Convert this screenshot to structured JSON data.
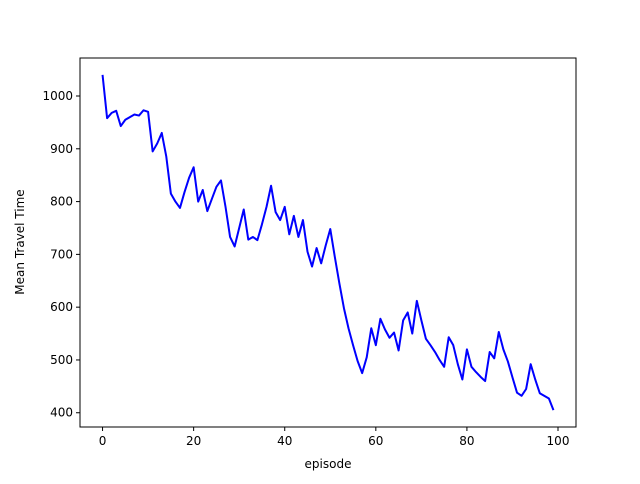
{
  "chart_data": {
    "type": "line",
    "xlabel": "episode",
    "ylabel": "Mean Travel Time",
    "x": [
      0,
      1,
      2,
      3,
      4,
      5,
      6,
      7,
      8,
      9,
      10,
      11,
      12,
      13,
      14,
      15,
      16,
      17,
      18,
      19,
      20,
      21,
      22,
      23,
      24,
      25,
      26,
      27,
      28,
      29,
      30,
      31,
      32,
      33,
      34,
      35,
      36,
      37,
      38,
      39,
      40,
      41,
      42,
      43,
      44,
      45,
      46,
      47,
      48,
      49,
      50,
      51,
      52,
      53,
      54,
      55,
      56,
      57,
      58,
      59,
      60,
      61,
      62,
      63,
      64,
      65,
      66,
      67,
      68,
      69,
      70,
      71,
      72,
      73,
      74,
      75,
      76,
      77,
      78,
      79,
      80,
      81,
      82,
      83,
      84,
      85,
      86,
      87,
      88,
      89,
      90,
      91,
      92,
      93,
      94,
      95,
      96,
      97,
      98,
      99
    ],
    "series": [
      {
        "color": "#0000ff",
        "values": [
          1040,
          958,
          968,
          972,
          943,
          955,
          960,
          965,
          963,
          973,
          970,
          895,
          910,
          930,
          885,
          815,
          800,
          788,
          818,
          845,
          865,
          800,
          822,
          782,
          805,
          828,
          840,
          790,
          733,
          715,
          750,
          785,
          728,
          733,
          727,
          757,
          790,
          830,
          780,
          765,
          790,
          738,
          773,
          733,
          765,
          705,
          677,
          712,
          683,
          717,
          748,
          695,
          645,
          598,
          560,
          528,
          498,
          475,
          505,
          560,
          528,
          578,
          558,
          542,
          552,
          518,
          575,
          590,
          550,
          612,
          575,
          540,
          528,
          515,
          500,
          487,
          543,
          528,
          492,
          463,
          520,
          487,
          477,
          468,
          460,
          515,
          503,
          553,
          520,
          497,
          467,
          438,
          432,
          445,
          492,
          463,
          437,
          432,
          427,
          405
        ]
      }
    ],
    "xlim": [
      -4.95,
      103.95
    ],
    "xticks": [
      0,
      20,
      40,
      60,
      80,
      100
    ],
    "ylim": [
      373,
      1072
    ],
    "yticks": [
      400,
      500,
      600,
      700,
      800,
      900,
      1000
    ],
    "grid": false
  }
}
